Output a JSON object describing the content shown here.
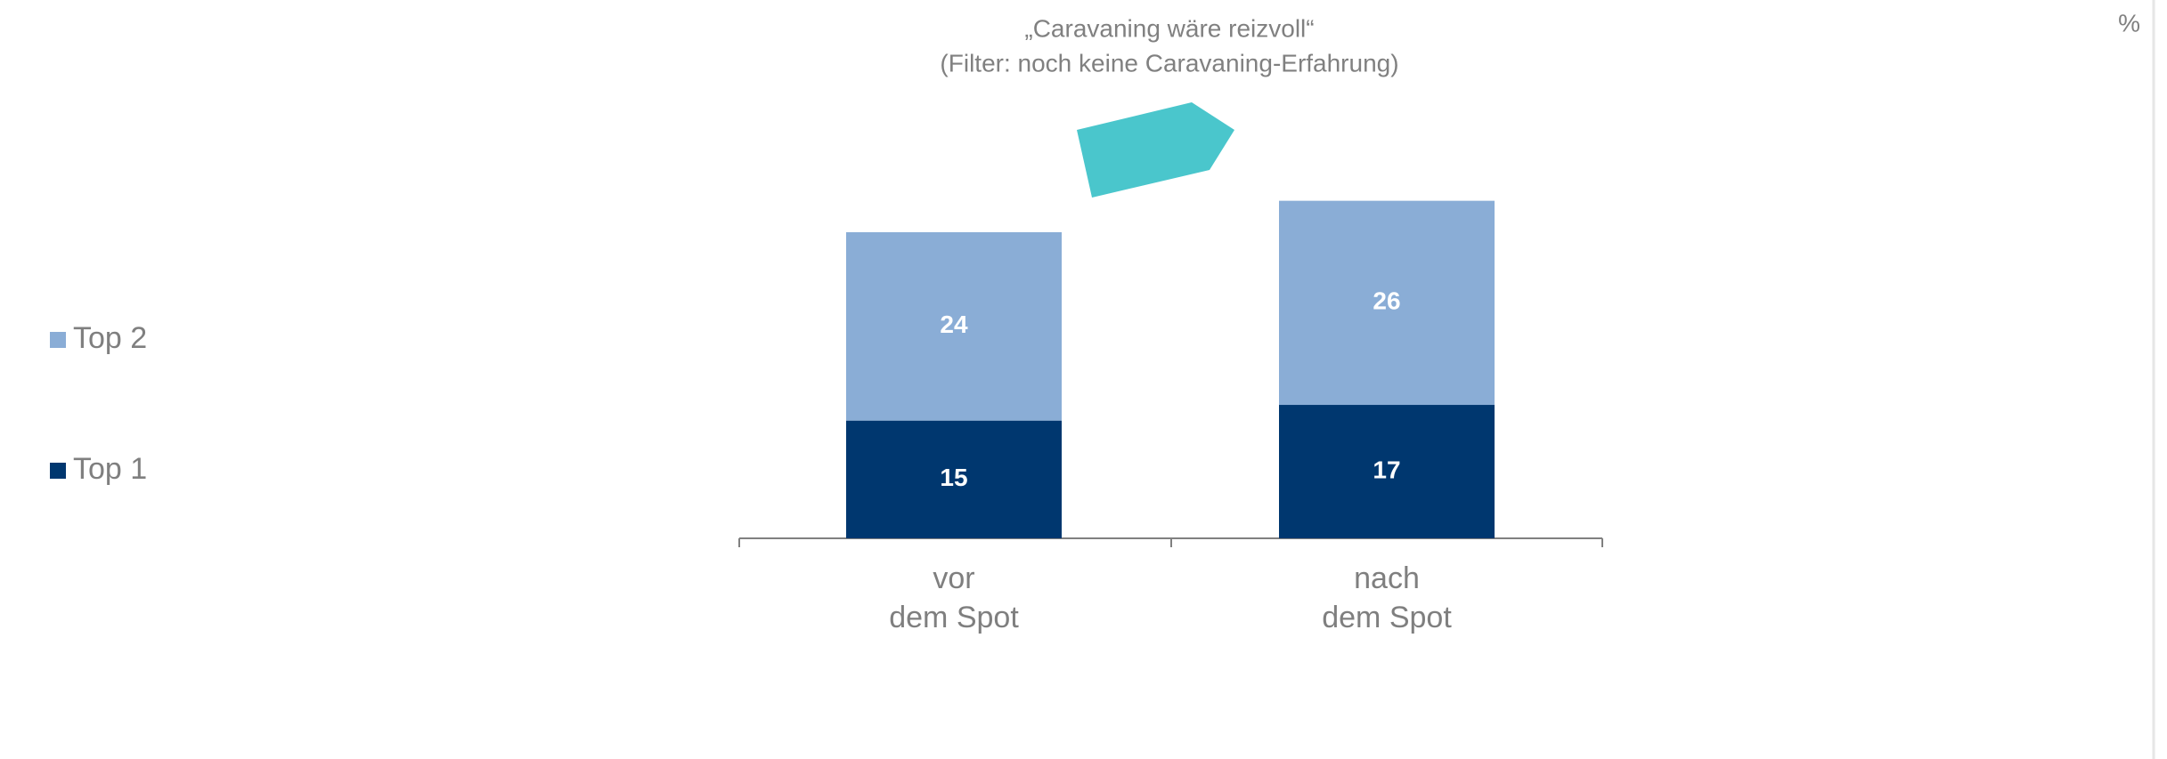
{
  "chart_data": {
    "type": "stacked_bar",
    "title": "„Caravaning wäre reizvoll“",
    "subtitle": "(Filter: noch keine Caravaning-Erfahrung)",
    "unit_label": "%",
    "categories": [
      "vor\ndem Spot",
      "nach\ndem Spot"
    ],
    "series": [
      {
        "name": "Top 1",
        "color": "#00376f",
        "values": [
          15,
          17
        ]
      },
      {
        "name": "Top 2",
        "color": "#8aadd6",
        "values": [
          24,
          26
        ]
      }
    ],
    "ylim": [
      0,
      45
    ]
  }
}
